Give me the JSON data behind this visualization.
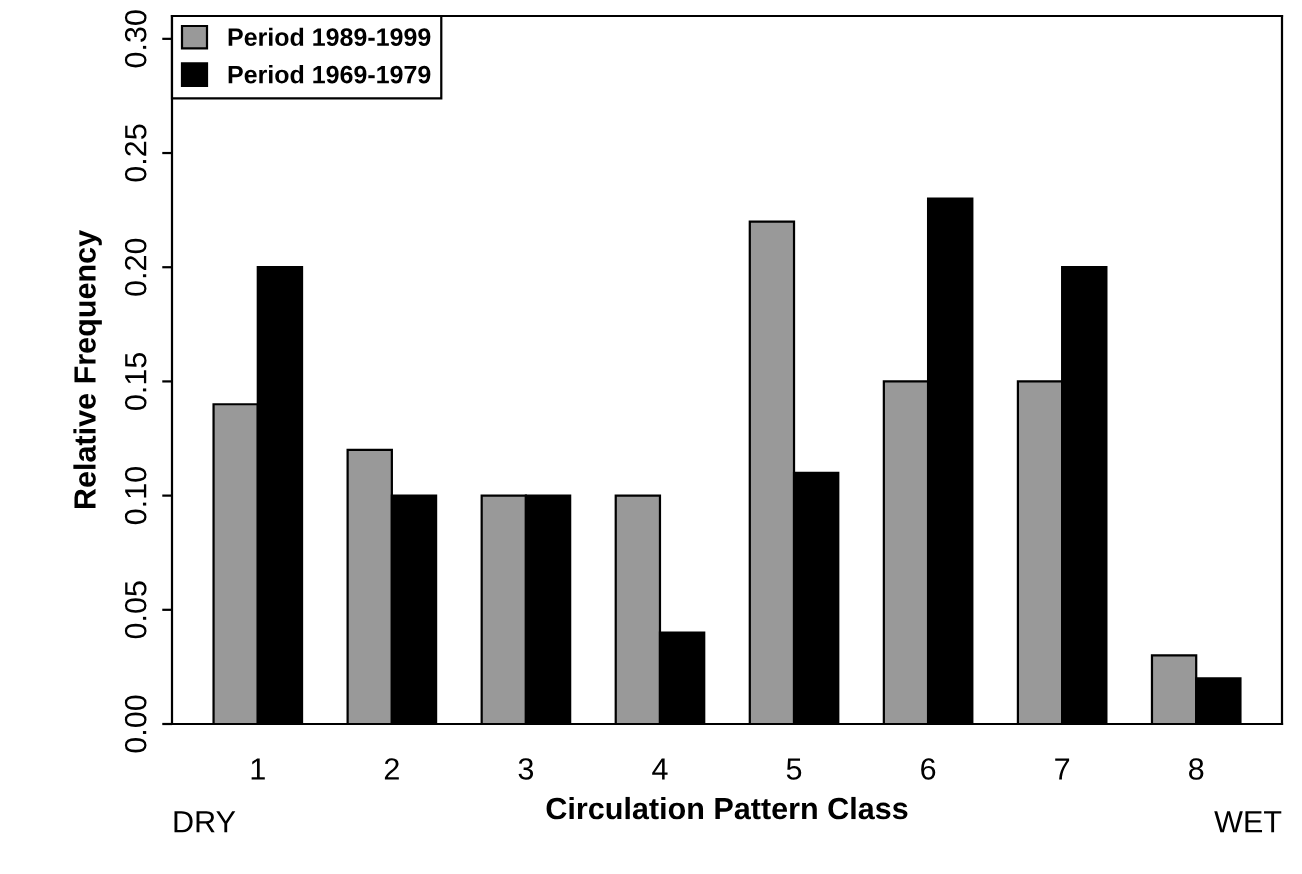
{
  "chart_data": {
    "type": "bar",
    "xlabel": "Circulation Pattern Class",
    "ylabel": "Relative Frequency",
    "categories": [
      "1",
      "2",
      "3",
      "4",
      "5",
      "6",
      "7",
      "8"
    ],
    "series": [
      {
        "name": "Period 1989-1999",
        "color": "#999999",
        "values": [
          0.14,
          0.12,
          0.1,
          0.1,
          0.22,
          0.15,
          0.15,
          0.03
        ]
      },
      {
        "name": "Period 1969-1979",
        "color": "#000000",
        "values": [
          0.2,
          0.1,
          0.1,
          0.04,
          0.11,
          0.23,
          0.2,
          0.02
        ]
      }
    ],
    "ylim": [
      0,
      0.31
    ],
    "yticks": [
      {
        "value": 0,
        "label": "0.00"
      },
      {
        "value": 0.05,
        "label": "0.05"
      },
      {
        "value": 0.1,
        "label": "0.10"
      },
      {
        "value": 0.15,
        "label": "0.15"
      },
      {
        "value": 0.2,
        "label": "0.20"
      },
      {
        "value": 0.25,
        "label": "0.25"
      },
      {
        "value": 0.3,
        "label": "0.30"
      }
    ],
    "annotations": [
      "DRY",
      "WET"
    ],
    "legend": "top left",
    "grid": false
  }
}
